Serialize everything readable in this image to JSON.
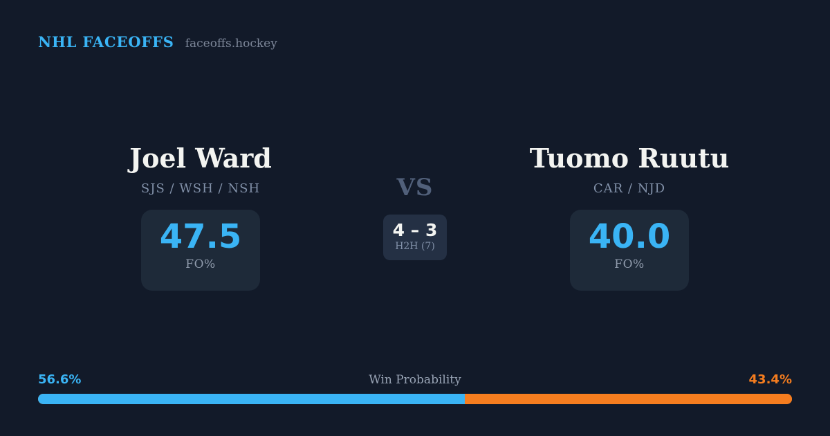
{
  "header": {
    "title": "NHL FACEOFFS",
    "site": "faceoffs.hockey"
  },
  "players": {
    "left": {
      "name": "Joel Ward",
      "teams": "SJS / WSH / NSH",
      "fo_pct": "47.5",
      "fo_label": "FO%"
    },
    "right": {
      "name": "Tuomo Ruutu",
      "teams": "CAR / NJD",
      "fo_pct": "40.0",
      "fo_label": "FO%"
    }
  },
  "center": {
    "vs": "VS",
    "h2h_score": "4 – 3",
    "h2h_label": "H2H (7)"
  },
  "win_probability": {
    "title": "Win Probability",
    "left_pct_label": "56.6%",
    "right_pct_label": "43.4%",
    "left_value": 56.6,
    "right_value": 43.4
  },
  "colors": {
    "bg": "#121a29",
    "card-bg": "#1e2a39",
    "h2h-bg": "#243044",
    "accent-blue": "#3ab4f5",
    "accent-orange": "#f57d1f",
    "white": "#f3f4f1",
    "slate": "#8291a9",
    "slate-dim": "#51607a",
    "gray-label": "#909bac"
  },
  "chart_data": {
    "type": "bar",
    "title": "Win Probability",
    "categories": [
      "Joel Ward",
      "Tuomo Ruutu"
    ],
    "values": [
      56.6,
      43.4
    ],
    "xlabel": "",
    "ylabel": "Win Probability (%)",
    "ylim": [
      0,
      100
    ]
  }
}
